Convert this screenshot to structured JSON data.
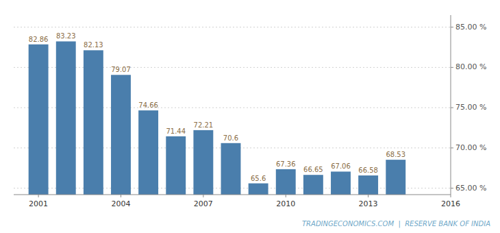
{
  "chart_data": {
    "type": "bar",
    "x": [
      2001,
      2002,
      2003,
      2004,
      2005,
      2006,
      2007,
      2008,
      2009,
      2010,
      2011,
      2012,
      2013,
      2014
    ],
    "values": [
      82.86,
      83.23,
      82.13,
      79.07,
      74.66,
      71.44,
      72.21,
      70.6,
      65.6,
      67.36,
      66.65,
      67.06,
      66.58,
      68.53
    ],
    "color": "#4a7eac",
    "xlim": [
      2000.1,
      2016.0
    ],
    "xticks": [
      2001,
      2004,
      2007,
      2010,
      2013,
      2016
    ],
    "ylim": [
      64.2,
      86.5
    ],
    "yticks": [
      {
        "value": 65,
        "label": "65.00 %"
      },
      {
        "value": 70,
        "label": "70.00 %"
      },
      {
        "value": 75,
        "label": "75.00 %"
      },
      {
        "value": 80,
        "label": "80.00 %"
      },
      {
        "value": 85,
        "label": "85.00 %"
      }
    ],
    "grid": true,
    "data_labels": true,
    "annotations": [
      "TRADINGECONOMICS.COM  |  RESERVE BANK OF INDIA"
    ]
  }
}
